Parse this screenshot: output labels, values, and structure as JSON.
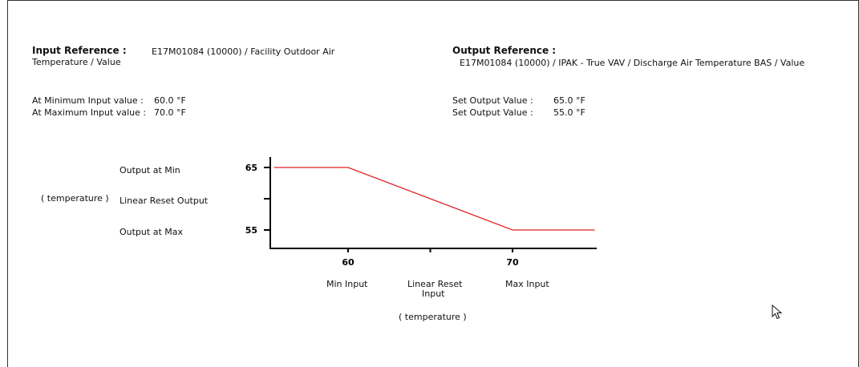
{
  "input_reference": {
    "label": "Input Reference :",
    "value": "E17M01084 (10000) / Facility Outdoor Air",
    "value_line2": "Temperature / Value"
  },
  "output_reference": {
    "label": "Output Reference :",
    "value": "E17M01084 (10000) / IPAK - True VAV / Discharge Air Temperature BAS / Value"
  },
  "input_settings": {
    "min_label": "At Minimum Input value :",
    "min_value": "60.0 °F",
    "max_label": "At Maximum Input value :",
    "max_value": "70.0 °F"
  },
  "output_settings": {
    "min_label": "Set Output Value :",
    "min_value": "65.0 °F",
    "max_label": "Set Output Value :",
    "max_value": "55.0 °F"
  },
  "chart_labels": {
    "output_at_min": "Output at Min",
    "linear_reset_output": "Linear Reset Output",
    "output_at_max": "Output at Max",
    "y_unit": "( temperature )",
    "min_input": "Min Input",
    "linear_reset_input_1": "Linear Reset",
    "linear_reset_input_2": "Input",
    "max_input": "Max Input",
    "x_unit": "( temperature )"
  },
  "chart_data": {
    "type": "line",
    "x_ticks": [
      60,
      70
    ],
    "y_ticks": [
      55,
      65
    ],
    "series": [
      {
        "color": "#e02020",
        "x": [
          55.5,
          60,
          70,
          75
        ],
        "y": [
          65,
          65,
          55,
          55
        ]
      }
    ]
  },
  "cursor_icon": "mouse-pointer-icon"
}
